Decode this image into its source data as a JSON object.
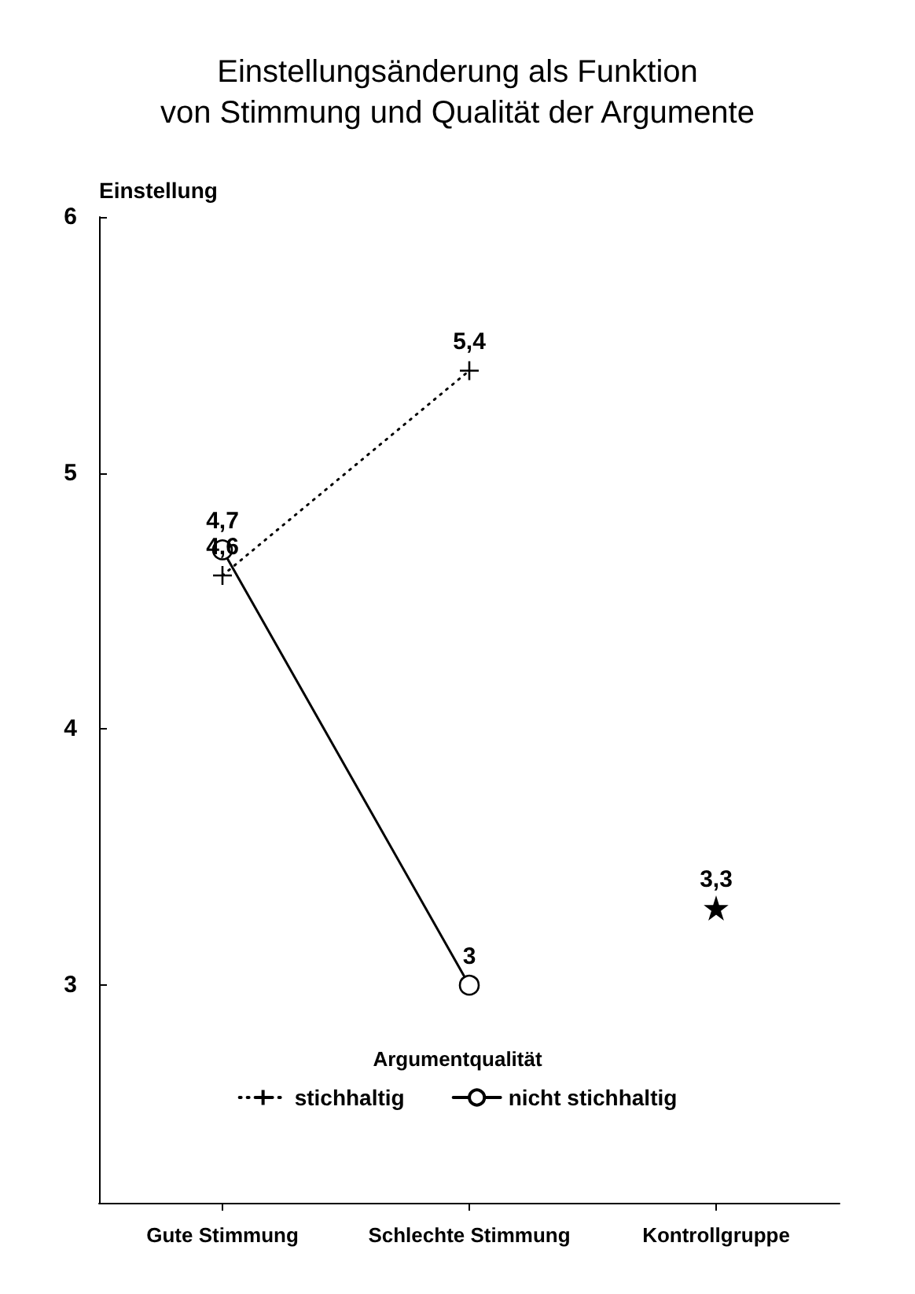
{
  "chart_data": {
    "type": "line",
    "title": "Einstellungsänderung als Funktion\nvon Stimmung und Qualität der Argumente",
    "ylabel": "Einstellung",
    "legend_title": "Argumentqualität",
    "categories": [
      "Gute Stimmung",
      "Schlechte Stimmung",
      "Kontrollgruppe"
    ],
    "series": [
      {
        "name": "stichhaltig",
        "color": "#000000",
        "values": [
          4.6,
          5.4,
          null
        ],
        "value_labels": [
          "4,6",
          "5,4",
          null
        ],
        "marker": "cross",
        "line_style": "dotted"
      },
      {
        "name": "nicht stichhaltig",
        "color": "#000000",
        "values": [
          4.7,
          3,
          null
        ],
        "value_labels": [
          "4,7",
          "3",
          null
        ],
        "marker": "circle",
        "line_style": "solid"
      },
      {
        "color": "#000000",
        "values": [
          null,
          null,
          3.3
        ],
        "value_labels": [
          null,
          null,
          "3,3"
        ],
        "marker": "star"
      }
    ],
    "ylim": [
      2.15,
      6
    ],
    "yticks": [
      3,
      4,
      5,
      6
    ],
    "grid": false,
    "legend": "bottom"
  }
}
